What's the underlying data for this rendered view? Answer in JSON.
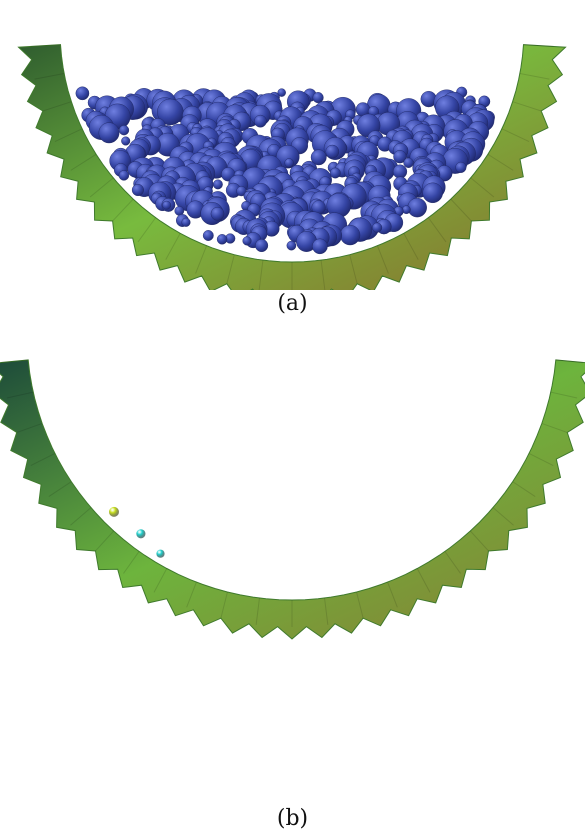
{
  "figure": {
    "panels": [
      {
        "label": "(a)",
        "description_colors": {
          "drum_light": "#7fc03e",
          "drum_dark": "#2e6b2a",
          "particle": "#3a4aa6"
        }
      },
      {
        "label": "(b)",
        "description_colors": {
          "drum_light": "#79bd3c",
          "drum_dark": "#1f4f3c",
          "palette": [
            "#1a2fd0",
            "#1e90ff",
            "#21d4d0",
            "#33d23a",
            "#c8e01c",
            "#f2a01a",
            "#e81616"
          ]
        }
      }
    ]
  }
}
